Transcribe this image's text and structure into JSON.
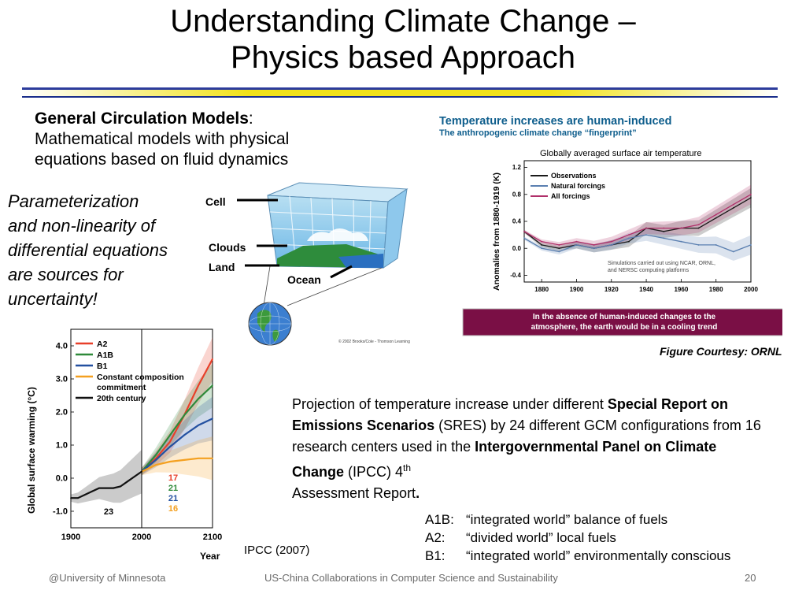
{
  "slide": {
    "title_line1": "Understanding Climate Change –",
    "title_line2": "Physics based Approach",
    "gcm_heading": "General Circulation Models",
    "gcm_colon": ":",
    "gcm_body_line1": "Mathematical models with physical",
    "gcm_body_line2": "equations based on fluid dynamics",
    "param_lines": [
      "Parameterization",
      "and non-linearity of",
      "differential equations",
      "are sources for",
      "uncertainty!"
    ],
    "figure_courtesy": "Figure Courtesy: ORNL",
    "ipcc_credit": "IPCC (2007)",
    "projection": {
      "p1": "Projection of temperature increase under different ",
      "b1": "Special Report on Emissions Scenarios",
      "p2": " (SRES) by 24 different GCM configurations from 16 research centers used in the ",
      "b2": "Intergovernmental Panel on Climate Change",
      "p3": " (IPCC) 4",
      "sup": "th",
      "p4": " Assessment Report",
      "p5": "."
    },
    "scenarios": [
      {
        "key": "A1B:",
        "desc": "“integrated world” balance of fuels"
      },
      {
        "key": "A2:",
        "desc": "“divided world” local fuels"
      },
      {
        "key": "B1:",
        "desc": "“integrated world” environmentally conscious"
      }
    ]
  },
  "footer": {
    "left": "@University of Minnesota",
    "center": "US-China Collaborations in Computer Science and Sustainability",
    "page": "20"
  },
  "grid_diagram": {
    "labels": {
      "cell": "Cell",
      "clouds": "Clouds",
      "land": "Land",
      "ocean": "Ocean"
    },
    "copyright": "© 2002 Brooks/Cole - Thomson Learning"
  },
  "ornl_figure": {
    "banner_line1": "Temperature increases are human-induced",
    "banner_line2": "The anthropogenic climate change “fingerprint”",
    "bottom_line1": "In the absence of human-induced changes to the",
    "bottom_line2": "atmosphere, the earth would be in a cooling trend",
    "note_line1": "Simulations carried out using NCAR, ORNL,",
    "note_line2": "and NERSC computing platforms"
  },
  "chart_data": [
    {
      "type": "line",
      "title": "Globally averaged surface air temperature",
      "ylabel": "Anomalies from 1880-1919 (K)",
      "xlim": [
        1870,
        2000
      ],
      "ylim": [
        -0.5,
        1.3
      ],
      "x_ticks": [
        1880,
        1900,
        1920,
        1940,
        1960,
        1980,
        2000
      ],
      "y_ticks": [
        -0.4,
        0.0,
        0.4,
        0.8,
        1.2
      ],
      "y_tick_labels": [
        "-0.4",
        "0.0",
        "0.4",
        "0.8",
        "1.2"
      ],
      "legend_position": "top-left",
      "series": [
        {
          "name": "Observations",
          "color": "#1a1a1a",
          "x": [
            1870,
            1880,
            1890,
            1900,
            1910,
            1920,
            1930,
            1940,
            1950,
            1960,
            1970,
            1980,
            1990,
            2000
          ],
          "values": [
            0.25,
            0.05,
            0.0,
            0.05,
            0.0,
            0.05,
            0.1,
            0.3,
            0.25,
            0.3,
            0.3,
            0.45,
            0.6,
            0.75
          ]
        },
        {
          "name": "Natural forcings",
          "color": "#5a7fb0",
          "x": [
            1870,
            1880,
            1890,
            1900,
            1910,
            1920,
            1930,
            1940,
            1950,
            1960,
            1970,
            1980,
            1990,
            2000
          ],
          "values": [
            0.15,
            0.0,
            -0.05,
            0.05,
            0.0,
            0.05,
            0.15,
            0.2,
            0.15,
            0.1,
            0.05,
            0.05,
            -0.05,
            0.05
          ]
        },
        {
          "name": "All forcings",
          "color": "#b0306a",
          "x": [
            1870,
            1880,
            1890,
            1900,
            1910,
            1920,
            1930,
            1940,
            1950,
            1960,
            1970,
            1980,
            1990,
            2000
          ],
          "values": [
            0.25,
            0.1,
            0.05,
            0.1,
            0.05,
            0.1,
            0.2,
            0.3,
            0.3,
            0.3,
            0.35,
            0.5,
            0.65,
            0.8
          ]
        }
      ]
    },
    {
      "type": "line",
      "ylabel": "Global surface warming (°C)",
      "xlabel": "Year",
      "xlim": [
        1900,
        2100
      ],
      "ylim": [
        -1.5,
        4.5
      ],
      "x_ticks": [
        1900,
        2000,
        2100
      ],
      "y_ticks": [
        -1.0,
        0.0,
        1.0,
        2.0,
        3.0,
        4.0
      ],
      "y_tick_labels": [
        "-1.0",
        "0.0",
        "1.0",
        "2.0",
        "3.0",
        "4.0"
      ],
      "legend_position": "top-left",
      "series": [
        {
          "name": "A2",
          "color": "#e8402a",
          "label": "17",
          "x": [
            2000,
            2020,
            2040,
            2060,
            2080,
            2100
          ],
          "values": [
            0.2,
            0.6,
            1.1,
            1.9,
            2.8,
            3.6
          ]
        },
        {
          "name": "A1B",
          "color": "#2f8a3a",
          "label": "21",
          "x": [
            2000,
            2020,
            2040,
            2060,
            2080,
            2100
          ],
          "values": [
            0.2,
            0.7,
            1.3,
            1.9,
            2.4,
            2.8
          ]
        },
        {
          "name": "B1",
          "color": "#2350a0",
          "label": "21",
          "x": [
            2000,
            2020,
            2040,
            2060,
            2080,
            2100
          ],
          "values": [
            0.2,
            0.55,
            0.95,
            1.3,
            1.6,
            1.8
          ]
        },
        {
          "name": "Constant composition commitment",
          "color": "#f4a020",
          "label": "16",
          "x": [
            2000,
            2020,
            2040,
            2060,
            2080,
            2100
          ],
          "values": [
            0.2,
            0.4,
            0.5,
            0.55,
            0.6,
            0.6
          ]
        },
        {
          "name": "20th century",
          "color": "#111111",
          "label": "23",
          "x": [
            1900,
            1910,
            1920,
            1930,
            1940,
            1950,
            1960,
            1970,
            1980,
            1990,
            2000
          ],
          "values": [
            -0.6,
            -0.6,
            -0.5,
            -0.4,
            -0.3,
            -0.3,
            -0.3,
            -0.25,
            -0.1,
            0.05,
            0.2
          ]
        }
      ]
    }
  ]
}
